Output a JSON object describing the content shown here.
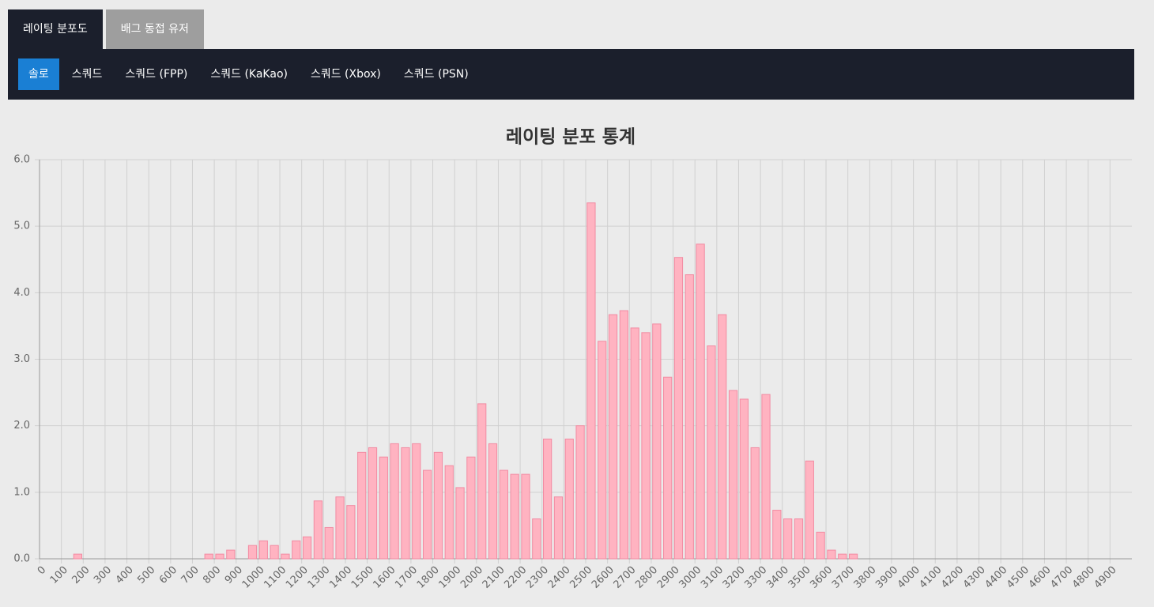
{
  "tabs": [
    {
      "label": "레이팅 분포도",
      "active": true
    },
    {
      "label": "배그 동접 유저",
      "active": false
    }
  ],
  "subtabs": [
    {
      "label": "솔로",
      "active": true
    },
    {
      "label": "스쿼드",
      "active": false
    },
    {
      "label": "스쿼드 (FPP)",
      "active": false
    },
    {
      "label": "스쿼드 (KaKao)",
      "active": false
    },
    {
      "label": "스쿼드 (Xbox)",
      "active": false
    },
    {
      "label": "스쿼드 (PSN)",
      "active": false
    }
  ],
  "chart_data": {
    "type": "bar",
    "title": "레이팅 분포 통계",
    "categories": [
      0,
      null,
      100,
      null,
      200,
      null,
      300,
      null,
      400,
      null,
      500,
      null,
      600,
      null,
      700,
      null,
      800,
      null,
      900,
      null,
      1000,
      null,
      1100,
      null,
      1200,
      null,
      1300,
      null,
      1400,
      null,
      1500,
      null,
      1600,
      null,
      1700,
      null,
      1800,
      null,
      1900,
      null,
      2000,
      null,
      2100,
      null,
      2200,
      null,
      2300,
      null,
      2400,
      null,
      2500,
      null,
      2600,
      null,
      2700,
      null,
      2800,
      null,
      2900,
      null,
      3000,
      null,
      3100,
      null,
      3200,
      null,
      3300,
      null,
      3400,
      null,
      3500,
      null,
      3600,
      null,
      3700,
      null,
      3800,
      null,
      3900,
      null,
      4000,
      null,
      4100,
      null,
      4200,
      null,
      4300,
      null,
      4400,
      null,
      4500,
      null,
      4600,
      null,
      4700,
      null,
      4800,
      null,
      4900,
      null
    ],
    "values": [
      0,
      0,
      0,
      0.07,
      0,
      0,
      0,
      0,
      0,
      0,
      0,
      0,
      0,
      0,
      0,
      0.07,
      0.07,
      0.13,
      0,
      0.2,
      0.27,
      0.2,
      0.07,
      0.27,
      0.33,
      0.87,
      0.47,
      0.93,
      0.8,
      1.6,
      1.67,
      1.53,
      1.73,
      1.67,
      1.73,
      1.33,
      1.6,
      1.4,
      1.07,
      1.53,
      2.33,
      1.73,
      1.33,
      1.27,
      1.27,
      0.6,
      1.8,
      0.93,
      1.8,
      2.0,
      5.35,
      3.27,
      3.67,
      3.73,
      3.47,
      3.4,
      3.53,
      2.73,
      4.53,
      4.27,
      4.73,
      3.2,
      3.67,
      2.53,
      2.4,
      1.67,
      2.47,
      0.73,
      0.6,
      0.6,
      1.47,
      0.4,
      0.13,
      0.07,
      0.07,
      0,
      0,
      0,
      0,
      0,
      0,
      0,
      0,
      0,
      0,
      0,
      0,
      0,
      0,
      0,
      0,
      0,
      0,
      0,
      0,
      0,
      0,
      0,
      0,
      0
    ],
    "color": "#ffb3c1",
    "border_color": "#f28ba2",
    "ylim": [
      0,
      6
    ],
    "yticks": [
      {
        "value": 0,
        "label": "0.0"
      },
      {
        "value": 1,
        "label": "1.0"
      },
      {
        "value": 2,
        "label": "2.0"
      },
      {
        "value": 3,
        "label": "3.0"
      },
      {
        "value": 4,
        "label": "4.0"
      },
      {
        "value": 5,
        "label": "5.0"
      },
      {
        "value": 6,
        "label": "6.0"
      }
    ],
    "grid": true
  }
}
